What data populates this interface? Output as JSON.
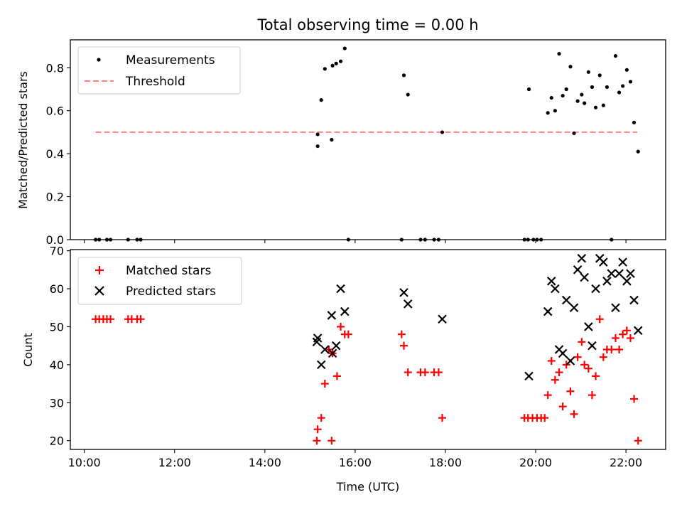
{
  "title": "Total observing time = 0.00 h",
  "colors": {
    "measurement": "#000000",
    "threshold": "#ff7f7f",
    "matched": "#ff0000",
    "predicted": "#000000"
  },
  "chart_data": [
    {
      "type": "scatter",
      "ylabel": "Matched/Predicted stars",
      "xlim": [
        9.69,
        22.88
      ],
      "ylim": [
        0.0,
        0.93
      ],
      "grid": false,
      "legend_placement": "upper-left",
      "legend": [
        "Measurements",
        "Threshold"
      ],
      "x_tick_labels": [
        "10:00",
        "12:00",
        "14:00",
        "16:00",
        "18:00",
        "20:00",
        "22:00"
      ],
      "x_tick_values": [
        10,
        12,
        14,
        16,
        18,
        20,
        22
      ],
      "y_tick_labels": [
        "0.0",
        "0.2",
        "0.4",
        "0.6",
        "0.8"
      ],
      "y_tick_values": [
        0.0,
        0.2,
        0.4,
        0.6,
        0.8
      ],
      "threshold": {
        "name": "Threshold",
        "y": 0.5,
        "x_range": [
          10.25,
          22.25
        ],
        "style": "dashed"
      },
      "series": [
        {
          "name": "Measurements",
          "marker": "dot",
          "points": [
            [
              10.25,
              0.0
            ],
            [
              10.33,
              0.0
            ],
            [
              10.5,
              0.0
            ],
            [
              10.58,
              0.0
            ],
            [
              10.97,
              0.0
            ],
            [
              11.17,
              0.0
            ],
            [
              11.25,
              0.0
            ],
            [
              15.17,
              0.435
            ],
            [
              15.17,
              0.49
            ],
            [
              15.25,
              0.65
            ],
            [
              15.33,
              0.795
            ],
            [
              15.48,
              0.465
            ],
            [
              15.5,
              0.81
            ],
            [
              15.58,
              0.82
            ],
            [
              15.68,
              0.83
            ],
            [
              15.77,
              0.89
            ],
            [
              15.85,
              0.0
            ],
            [
              17.03,
              0.0
            ],
            [
              17.08,
              0.765
            ],
            [
              17.17,
              0.675
            ],
            [
              17.45,
              0.0
            ],
            [
              17.55,
              0.0
            ],
            [
              17.75,
              0.0
            ],
            [
              17.85,
              0.0
            ],
            [
              17.93,
              0.5
            ],
            [
              19.75,
              0.0
            ],
            [
              19.83,
              0.0
            ],
            [
              19.85,
              0.7
            ],
            [
              19.95,
              0.0
            ],
            [
              20.03,
              0.0
            ],
            [
              20.12,
              0.0
            ],
            [
              20.27,
              0.59
            ],
            [
              20.35,
              0.66
            ],
            [
              20.43,
              0.6
            ],
            [
              20.52,
              0.865
            ],
            [
              20.6,
              0.67
            ],
            [
              20.68,
              0.7
            ],
            [
              20.77,
              0.805
            ],
            [
              20.85,
              0.495
            ],
            [
              20.93,
              0.645
            ],
            [
              21.02,
              0.675
            ],
            [
              21.08,
              0.635
            ],
            [
              21.17,
              0.78
            ],
            [
              21.25,
              0.71
            ],
            [
              21.33,
              0.615
            ],
            [
              21.42,
              0.765
            ],
            [
              21.5,
              0.625
            ],
            [
              21.58,
              0.71
            ],
            [
              21.68,
              0.0
            ],
            [
              21.77,
              0.855
            ],
            [
              21.85,
              0.685
            ],
            [
              21.93,
              0.715
            ],
            [
              22.02,
              0.79
            ],
            [
              22.1,
              0.735
            ],
            [
              22.18,
              0.545
            ],
            [
              22.27,
              0.41
            ]
          ]
        }
      ]
    },
    {
      "type": "scatter",
      "xlabel": "Time (UTC)",
      "ylabel": "Count",
      "xlim": [
        9.69,
        22.88
      ],
      "ylim": [
        17.7,
        70.3
      ],
      "grid": false,
      "legend_placement": "upper-left",
      "legend": [
        "Matched stars",
        "Predicted stars"
      ],
      "x_tick_labels": [
        "10:00",
        "12:00",
        "14:00",
        "16:00",
        "18:00",
        "20:00",
        "22:00"
      ],
      "x_tick_values": [
        10,
        12,
        14,
        16,
        18,
        20,
        22
      ],
      "y_tick_labels": [
        "20",
        "30",
        "40",
        "50",
        "60",
        "70"
      ],
      "y_tick_values": [
        20,
        30,
        40,
        50,
        60,
        70
      ],
      "series": [
        {
          "name": "Matched stars",
          "marker": "plus",
          "points": [
            [
              10.25,
              52
            ],
            [
              10.33,
              52
            ],
            [
              10.42,
              52
            ],
            [
              10.5,
              52
            ],
            [
              10.58,
              52
            ],
            [
              10.97,
              52
            ],
            [
              11.05,
              52
            ],
            [
              11.17,
              52
            ],
            [
              11.25,
              52
            ],
            [
              15.15,
              20
            ],
            [
              15.17,
              23
            ],
            [
              15.25,
              26
            ],
            [
              15.33,
              35
            ],
            [
              15.42,
              44
            ],
            [
              15.48,
              20
            ],
            [
              15.5,
              43
            ],
            [
              15.6,
              37
            ],
            [
              15.68,
              50
            ],
            [
              15.77,
              48
            ],
            [
              15.85,
              48
            ],
            [
              17.03,
              48
            ],
            [
              17.08,
              45
            ],
            [
              17.17,
              38
            ],
            [
              17.45,
              38
            ],
            [
              17.55,
              38
            ],
            [
              17.75,
              38
            ],
            [
              17.85,
              38
            ],
            [
              17.93,
              26
            ],
            [
              19.75,
              26
            ],
            [
              19.83,
              26
            ],
            [
              19.93,
              26
            ],
            [
              20.03,
              26
            ],
            [
              20.12,
              26
            ],
            [
              20.2,
              26
            ],
            [
              20.27,
              32
            ],
            [
              20.35,
              41
            ],
            [
              20.43,
              36
            ],
            [
              20.52,
              38
            ],
            [
              20.6,
              29
            ],
            [
              20.68,
              40
            ],
            [
              20.77,
              33
            ],
            [
              20.85,
              27
            ],
            [
              20.93,
              42
            ],
            [
              21.02,
              46
            ],
            [
              21.08,
              40
            ],
            [
              21.17,
              39
            ],
            [
              21.25,
              32
            ],
            [
              21.33,
              37
            ],
            [
              21.42,
              52
            ],
            [
              21.5,
              42
            ],
            [
              21.58,
              44
            ],
            [
              21.68,
              44
            ],
            [
              21.77,
              47
            ],
            [
              21.85,
              44
            ],
            [
              21.93,
              48
            ],
            [
              22.02,
              49
            ],
            [
              22.1,
              47
            ],
            [
              22.18,
              31
            ],
            [
              22.27,
              20
            ]
          ]
        },
        {
          "name": "Predicted stars",
          "marker": "x",
          "points": [
            [
              15.15,
              46
            ],
            [
              15.17,
              47
            ],
            [
              15.25,
              40
            ],
            [
              15.33,
              44
            ],
            [
              15.48,
              53
            ],
            [
              15.5,
              43
            ],
            [
              15.58,
              45
            ],
            [
              15.68,
              60
            ],
            [
              15.77,
              54
            ],
            [
              17.08,
              59
            ],
            [
              17.17,
              56
            ],
            [
              17.93,
              52
            ],
            [
              19.85,
              37
            ],
            [
              20.27,
              54
            ],
            [
              20.35,
              62
            ],
            [
              20.43,
              60
            ],
            [
              20.52,
              44
            ],
            [
              20.6,
              43
            ],
            [
              20.68,
              57
            ],
            [
              20.77,
              41
            ],
            [
              20.85,
              55
            ],
            [
              20.93,
              65
            ],
            [
              21.02,
              68
            ],
            [
              21.08,
              63
            ],
            [
              21.17,
              50
            ],
            [
              21.25,
              45
            ],
            [
              21.33,
              60
            ],
            [
              21.42,
              68
            ],
            [
              21.5,
              67
            ],
            [
              21.58,
              62
            ],
            [
              21.68,
              64
            ],
            [
              21.77,
              55
            ],
            [
              21.85,
              64
            ],
            [
              21.93,
              67
            ],
            [
              22.02,
              62
            ],
            [
              22.1,
              64
            ],
            [
              22.18,
              57
            ],
            [
              22.27,
              49
            ]
          ]
        }
      ]
    }
  ]
}
